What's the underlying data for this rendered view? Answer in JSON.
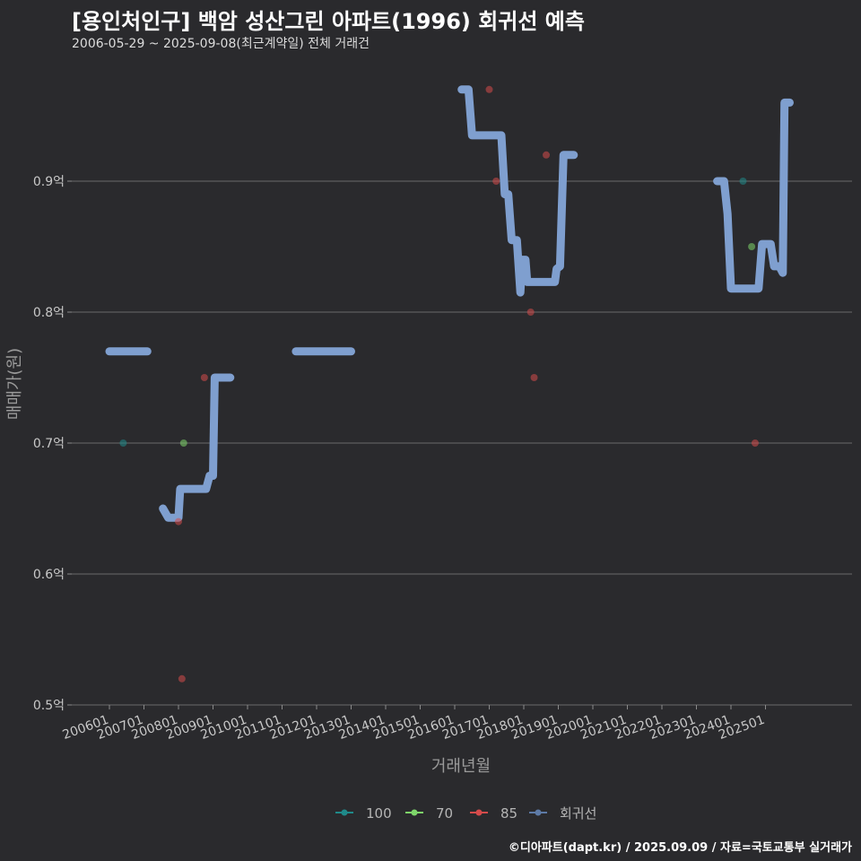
{
  "chart_data": {
    "type": "scatter",
    "title": "[용인처인구] 백암 성산그린 아파트(1996) 회귀선 예측",
    "subtitle": "2006-05-29 ~ 2025-09-08(최근계약일) 전체 거래건",
    "xlabel": "거래년월",
    "ylabel": "매매가(원)",
    "ylim": [
      0.5,
      0.97
    ],
    "x_ticks": [
      "200601",
      "200701",
      "200801",
      "200901",
      "201001",
      "201101",
      "201201",
      "201301",
      "201401",
      "201501",
      "201601",
      "201701",
      "201801",
      "201901",
      "202001",
      "202101",
      "202201",
      "202301",
      "202401",
      "202501"
    ],
    "y_ticks": [
      {
        "value": 0.5,
        "label": "0.5억"
      },
      {
        "value": 0.6,
        "label": "0.6억"
      },
      {
        "value": 0.7,
        "label": "0.7억"
      },
      {
        "value": 0.8,
        "label": "0.8억"
      },
      {
        "value": 0.9,
        "label": "0.9억"
      }
    ],
    "series": [
      {
        "name": "100",
        "color": "#1f8a8a",
        "kind": "points",
        "points": [
          [
            2006.4,
            0.7
          ],
          [
            2024.35,
            0.9
          ]
        ]
      },
      {
        "name": "70",
        "color": "#7ed66a",
        "kind": "points",
        "points": [
          [
            2008.15,
            0.7
          ],
          [
            2024.6,
            0.85
          ]
        ]
      },
      {
        "name": "85",
        "color": "#d44b4b",
        "kind": "points",
        "points": [
          [
            2008.0,
            0.64
          ],
          [
            2008.1,
            0.52
          ],
          [
            2008.75,
            0.75
          ],
          [
            2017.0,
            0.97
          ],
          [
            2017.2,
            0.9
          ],
          [
            2018.2,
            0.8
          ],
          [
            2018.3,
            0.75
          ],
          [
            2018.65,
            0.92
          ],
          [
            2024.7,
            0.7
          ]
        ]
      },
      {
        "name": "회귀선",
        "color": "#7f9fcf",
        "kind": "line",
        "segments": [
          [
            [
              2006.0,
              0.77
            ],
            [
              2007.1,
              0.77
            ]
          ],
          [
            [
              2007.55,
              0.65
            ],
            [
              2007.7,
              0.643
            ],
            [
              2008.0,
              0.643
            ],
            [
              2008.05,
              0.665
            ],
            [
              2008.8,
              0.665
            ],
            [
              2008.9,
              0.675
            ],
            [
              2009.0,
              0.675
            ],
            [
              2009.05,
              0.75
            ],
            [
              2009.5,
              0.75
            ]
          ],
          [
            [
              2011.4,
              0.77
            ],
            [
              2013.0,
              0.77
            ]
          ],
          [
            [
              2016.2,
              0.97
            ],
            [
              2016.4,
              0.97
            ],
            [
              2016.5,
              0.935
            ],
            [
              2017.35,
              0.935
            ],
            [
              2017.45,
              0.89
            ],
            [
              2017.55,
              0.89
            ],
            [
              2017.65,
              0.855
            ],
            [
              2017.8,
              0.855
            ],
            [
              2017.9,
              0.815
            ],
            [
              2017.95,
              0.84
            ],
            [
              2018.05,
              0.84
            ],
            [
              2018.1,
              0.823
            ],
            [
              2018.9,
              0.823
            ],
            [
              2018.95,
              0.833
            ],
            [
              2019.05,
              0.835
            ],
            [
              2019.15,
              0.92
            ],
            [
              2019.45,
              0.92
            ]
          ],
          [
            [
              2023.6,
              0.9
            ],
            [
              2023.8,
              0.9
            ],
            [
              2023.9,
              0.875
            ],
            [
              2024.0,
              0.818
            ],
            [
              2024.8,
              0.818
            ],
            [
              2024.9,
              0.852
            ],
            [
              2025.15,
              0.852
            ],
            [
              2025.25,
              0.835
            ],
            [
              2025.4,
              0.835
            ],
            [
              2025.5,
              0.83
            ],
            [
              2025.55,
              0.96
            ],
            [
              2025.7,
              0.96
            ]
          ]
        ]
      }
    ],
    "legend": [
      {
        "label": "100",
        "color": "#1f8a8a"
      },
      {
        "label": "70",
        "color": "#7ed66a"
      },
      {
        "label": "85",
        "color": "#d44b4b"
      },
      {
        "label": "회귀선",
        "color": "#5d7aa6"
      }
    ],
    "legend_position": "bottom"
  },
  "caption": "©디아파트(dapt.kr) / 2025.09.09 / 자료=국토교통부 실거래가"
}
